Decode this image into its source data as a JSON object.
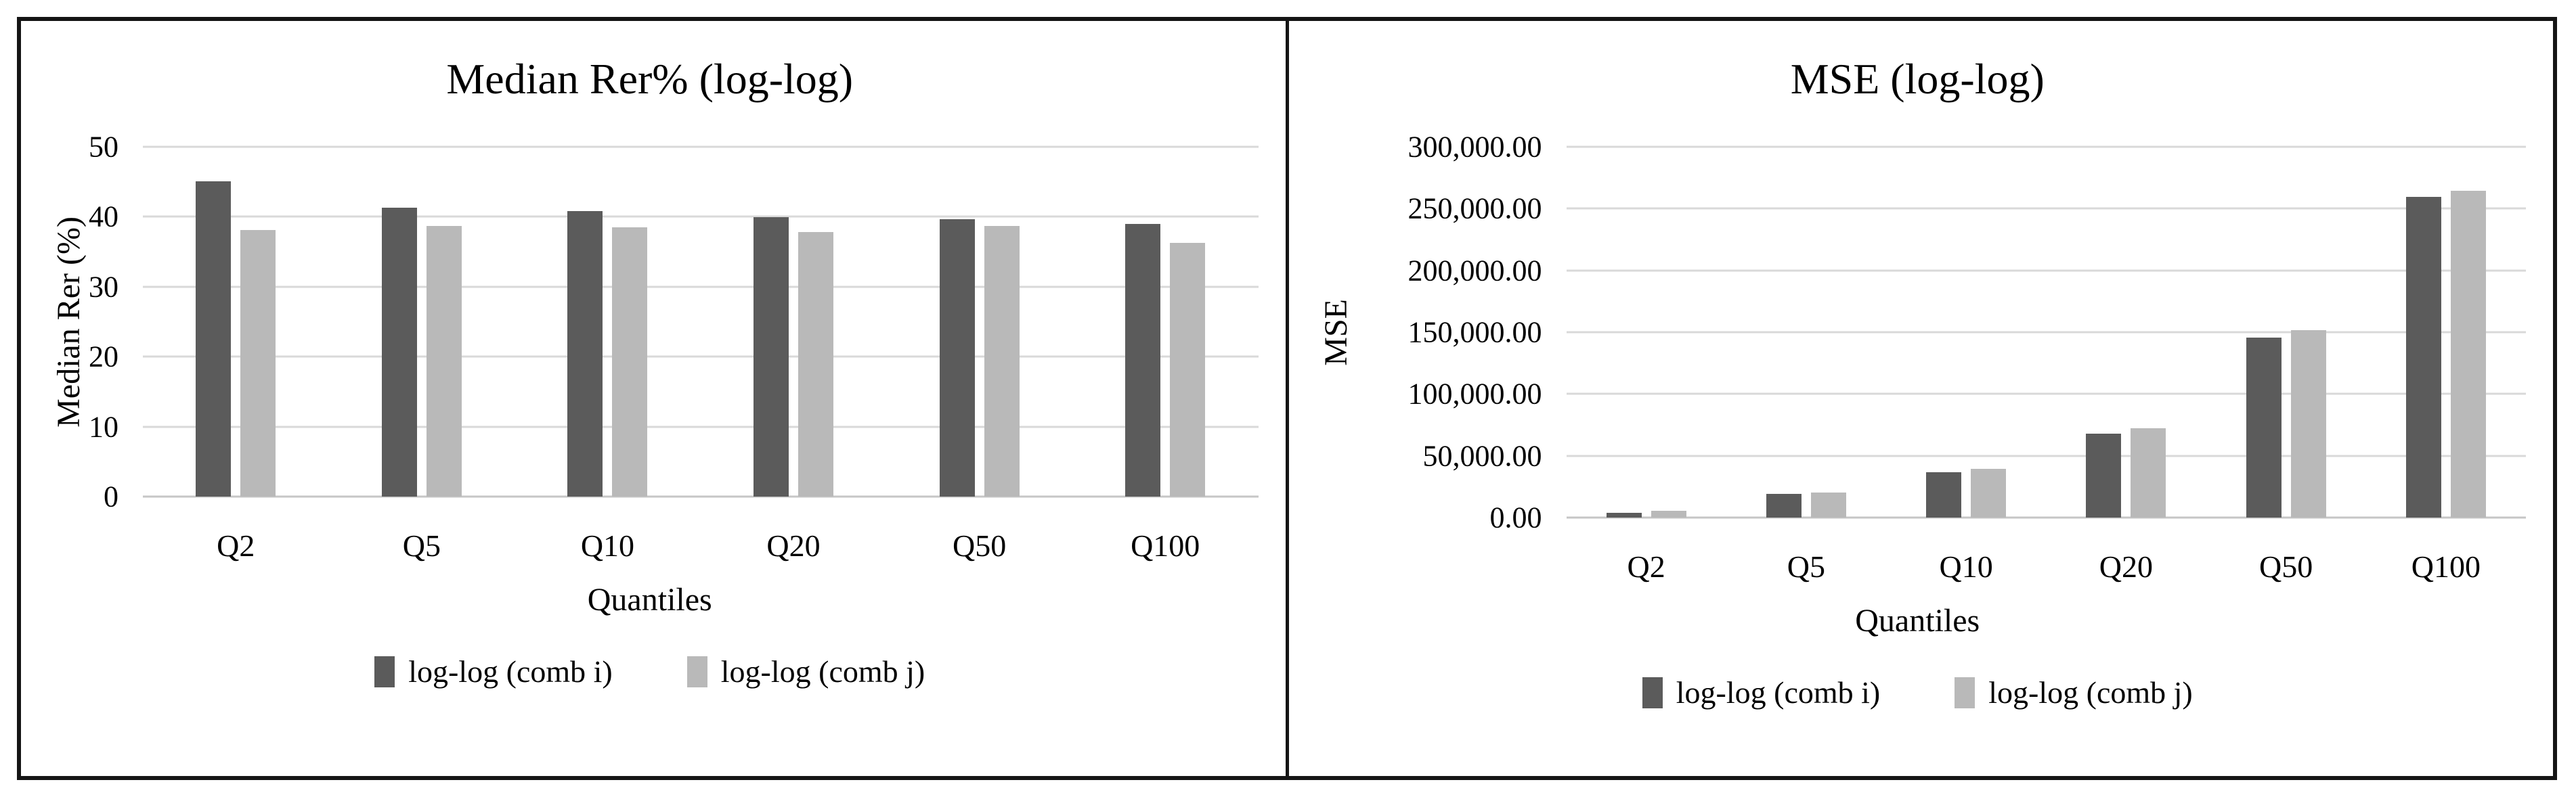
{
  "figure": {
    "border_color": "#151515",
    "background": "#ffffff"
  },
  "colors": {
    "comb_i": "#5b5b5b",
    "comb_j": "#b9b9b9",
    "gridline": "#d9d9d9",
    "axis_line": "#c6c6c6",
    "text": "#000000"
  },
  "chart_data": [
    {
      "type": "bar",
      "title": "Median Rer% (log-log)",
      "xlabel": "Quantiles",
      "ylabel": "Median Rer (%)",
      "categories": [
        "Q2",
        "Q5",
        "Q10",
        "Q20",
        "Q50",
        "Q100"
      ],
      "series": [
        {
          "name": "log-log (comb i)",
          "color_key": "comb_i",
          "values": [
            45.1,
            41.3,
            40.8,
            39.9,
            39.7,
            39.0
          ]
        },
        {
          "name": "log-log (comb j)",
          "color_key": "comb_j",
          "values": [
            38.1,
            38.7,
            38.5,
            37.8,
            38.7,
            36.3
          ]
        }
      ],
      "ylim": [
        0,
        50
      ],
      "y_ticks": [
        "50",
        "40",
        "30",
        "20",
        "10",
        "0"
      ],
      "grid": true,
      "legend_position": "bottom"
    },
    {
      "type": "bar",
      "title": "MSE (log-log)",
      "xlabel": "Quantiles",
      "ylabel": "MSE",
      "categories": [
        "Q2",
        "Q5",
        "Q10",
        "Q20",
        "Q50",
        "Q100"
      ],
      "series": [
        {
          "name": "log-log (comb i)",
          "color_key": "comb_i",
          "values": [
            4000,
            19000,
            36500,
            68000,
            145500,
            259500
          ]
        },
        {
          "name": "log-log (comb j)",
          "color_key": "comb_j",
          "values": [
            5500,
            20500,
            39500,
            72500,
            151500,
            264500
          ]
        }
      ],
      "ylim": [
        0,
        300000
      ],
      "y_ticks": [
        "300,000.00",
        "250,000.00",
        "200,000.00",
        "150,000.00",
        "100,000.00",
        "50,000.00",
        "0.00"
      ],
      "grid": true,
      "legend_position": "bottom"
    }
  ]
}
